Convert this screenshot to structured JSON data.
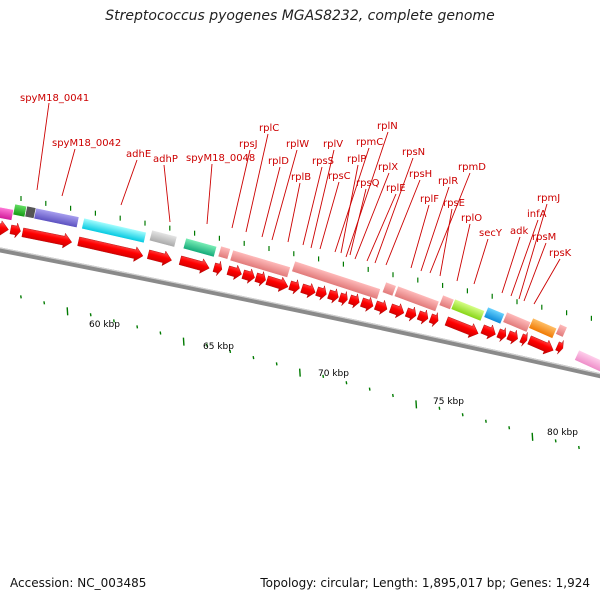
{
  "title": "Streptococcus pyogenes MGAS8232, complete genome",
  "footer": {
    "accession": "Accession: NC_003485",
    "summary": "Topology: circular; Length: 1,895,017 bp; Genes: 1,924"
  },
  "colors": {
    "cds_arrow": "#ff0000",
    "backbone": "#8a8a8a",
    "tick": "#007a00",
    "label_text": "#cc0000",
    "kbp_text": "#000000"
  },
  "scale_labels": [
    "60 kbp",
    "65 kbp",
    "70 kbp",
    "75 kbp",
    "80 kbp"
  ],
  "gene_labels": [
    "spyM18_0041",
    "spyM18_0042",
    "adhE",
    "adhP",
    "spyM18_0048",
    "rpsJ",
    "rplC",
    "rplD",
    "rplW",
    "rplB",
    "rpsS",
    "rplV",
    "rpsC",
    "rpmC",
    "rplP",
    "rpsQ",
    "rplN",
    "rplX",
    "rplE",
    "rpsN",
    "rpsH",
    "rplF",
    "rplR",
    "rpmD",
    "rpsE",
    "rplO",
    "secY",
    "adk",
    "infA",
    "rpmJ",
    "rpsM",
    "rpsK"
  ]
}
